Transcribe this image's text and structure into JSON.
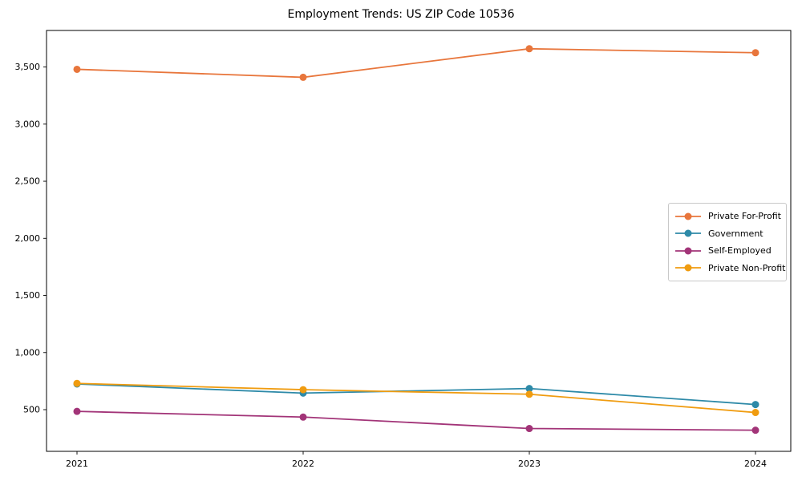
{
  "chart_data": {
    "type": "line",
    "title": "Employment Trends: US ZIP Code 10536",
    "categories": [
      "2021",
      "2022",
      "2023",
      "2024"
    ],
    "series": [
      {
        "name": "Private For-Profit",
        "color": "#E8763C",
        "values": [
          3480,
          3410,
          3660,
          3625
        ]
      },
      {
        "name": "Government",
        "color": "#2E8AA8",
        "values": [
          725,
          645,
          685,
          545
        ]
      },
      {
        "name": "Self-Employed",
        "color": "#A23478",
        "values": [
          485,
          435,
          335,
          320
        ]
      },
      {
        "name": "Private Non-Profit",
        "color": "#F09C10",
        "values": [
          730,
          675,
          635,
          475
        ]
      }
    ],
    "xlabel": "",
    "ylabel": "",
    "yticks": {
      "values": [
        500,
        1000,
        1500,
        2000,
        2500,
        3000,
        3500
      ],
      "labels": [
        "500",
        "1,000",
        "1,500",
        "2,000",
        "2,500",
        "3,000",
        "3,500"
      ]
    },
    "ylim": [
      135,
      3820
    ],
    "grid": false,
    "legend_position": "center right",
    "frame_color": "#000000",
    "tick_label_color": "#000000",
    "background": "#ffffff"
  }
}
